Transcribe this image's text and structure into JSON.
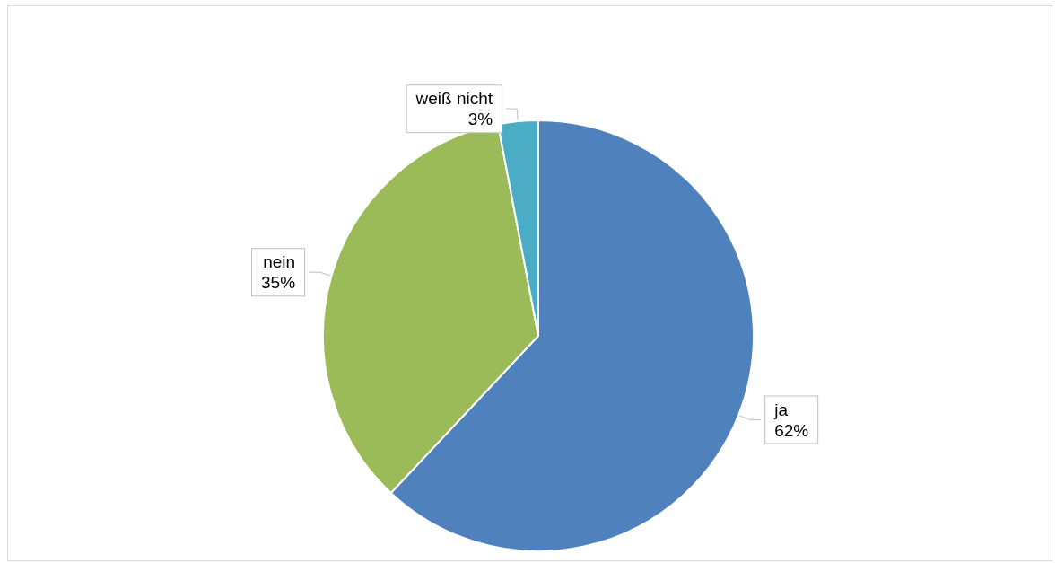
{
  "chart_data": {
    "type": "pie",
    "categories": [
      "ja",
      "nein",
      "weiß nicht"
    ],
    "values": [
      62,
      35,
      3
    ],
    "value_labels": [
      "62%",
      "35%",
      "3%"
    ],
    "colors": [
      "#4f81bd",
      "#9bbb59",
      "#4bacc6"
    ],
    "legend": false
  }
}
